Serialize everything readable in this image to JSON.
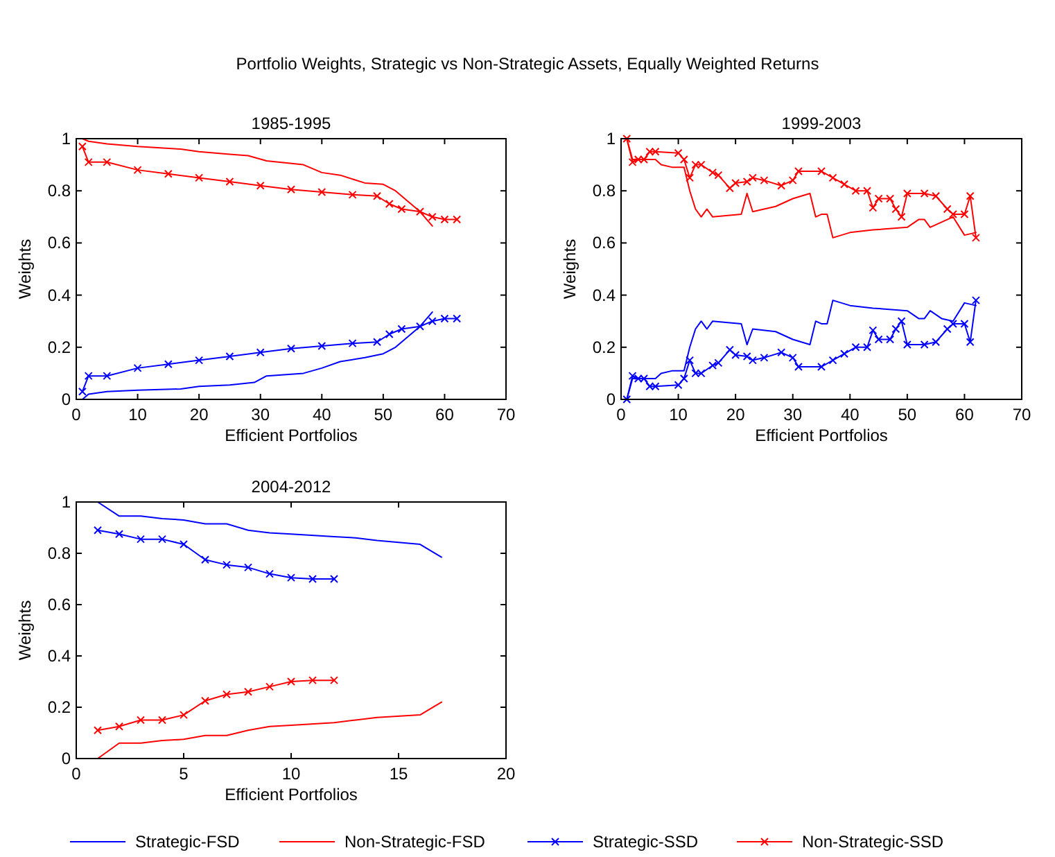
{
  "chart_data": [
    {
      "type": "line",
      "title": "1985-1995",
      "xlabel": "Efficient Portfolios",
      "ylabel": "Weights",
      "annotations": [
        "Portfolio Weights, Strategic vs Non-Strategic Assets, Equally Weighted Returns"
      ],
      "legend": "bottom",
      "xlim": [
        0,
        70
      ],
      "xticks": [
        0,
        10,
        20,
        30,
        40,
        50,
        60,
        70
      ],
      "ylim": [
        0,
        1
      ],
      "yticks": [
        0,
        0.2,
        0.4,
        0.6,
        0.8,
        1
      ],
      "grid": false,
      "series": [
        {
          "name": "Strategic-FSD",
          "color": "#0000ff",
          "marker": "none",
          "x": [
            1,
            2,
            5,
            10,
            17,
            20,
            25,
            29,
            31,
            37,
            40,
            43,
            47,
            50,
            52,
            54,
            56,
            58
          ],
          "values": [
            0,
            0.02,
            0.03,
            0.035,
            0.04,
            0.05,
            0.055,
            0.065,
            0.09,
            0.1,
            0.12,
            0.145,
            0.16,
            0.175,
            0.2,
            0.24,
            0.28,
            0.335
          ]
        },
        {
          "name": "Non-Strategic-FSD",
          "color": "#ff0000",
          "marker": "none",
          "x": [
            1,
            2,
            5,
            10,
            17,
            20,
            25,
            28,
            31,
            37,
            40,
            43,
            47,
            50,
            52,
            54,
            56,
            58
          ],
          "values": [
            1,
            0.99,
            0.98,
            0.97,
            0.96,
            0.95,
            0.94,
            0.935,
            0.915,
            0.9,
            0.87,
            0.86,
            0.83,
            0.825,
            0.8,
            0.76,
            0.72,
            0.665
          ]
        },
        {
          "name": "Strategic-SSD",
          "color": "#0000ff",
          "marker": "cross",
          "x": [
            1,
            2,
            5,
            10,
            15,
            20,
            25,
            30,
            35,
            40,
            45,
            49,
            51,
            53,
            56,
            58,
            60,
            62
          ],
          "values": [
            0.03,
            0.09,
            0.09,
            0.12,
            0.135,
            0.15,
            0.165,
            0.18,
            0.195,
            0.205,
            0.215,
            0.22,
            0.25,
            0.27,
            0.28,
            0.3,
            0.31,
            0.31
          ]
        },
        {
          "name": "Non-Strategic-SSD",
          "color": "#ff0000",
          "marker": "cross",
          "x": [
            1,
            2,
            5,
            10,
            15,
            20,
            25,
            30,
            35,
            40,
            45,
            49,
            51,
            53,
            56,
            58,
            60,
            62
          ],
          "values": [
            0.97,
            0.91,
            0.91,
            0.88,
            0.865,
            0.85,
            0.835,
            0.82,
            0.805,
            0.795,
            0.785,
            0.78,
            0.75,
            0.73,
            0.72,
            0.7,
            0.69,
            0.69
          ]
        }
      ]
    },
    {
      "type": "line",
      "title": "1999-2003",
      "xlabel": "Efficient Portfolios",
      "ylabel": "Weights",
      "xlim": [
        0,
        70
      ],
      "xticks": [
        0,
        10,
        20,
        30,
        40,
        50,
        60,
        70
      ],
      "ylim": [
        0,
        1
      ],
      "yticks": [
        0,
        0.2,
        0.4,
        0.6,
        0.8,
        1
      ],
      "grid": false,
      "series": [
        {
          "color": "#0000ff",
          "marker": "none",
          "x": [
            1,
            2,
            6,
            7,
            9,
            11,
            12,
            13,
            14,
            15,
            16,
            21,
            22,
            23,
            27,
            30,
            33,
            34,
            35,
            36,
            37,
            40,
            44,
            50,
            52,
            53,
            54,
            56,
            58,
            60,
            62
          ],
          "values": [
            0,
            0.08,
            0.08,
            0.1,
            0.11,
            0.11,
            0.2,
            0.27,
            0.3,
            0.27,
            0.3,
            0.29,
            0.21,
            0.27,
            0.26,
            0.23,
            0.21,
            0.3,
            0.29,
            0.29,
            0.38,
            0.36,
            0.35,
            0.34,
            0.31,
            0.31,
            0.34,
            0.31,
            0.3,
            0.37,
            0.36
          ]
        },
        {
          "color": "#ff0000",
          "marker": "none",
          "x": [
            1,
            2,
            6,
            7,
            9,
            11,
            12,
            13,
            14,
            15,
            16,
            21,
            22,
            23,
            27,
            30,
            33,
            34,
            35,
            36,
            37,
            40,
            44,
            50,
            52,
            53,
            54,
            56,
            58,
            60,
            62
          ],
          "values": [
            1,
            0.92,
            0.92,
            0.9,
            0.89,
            0.89,
            0.8,
            0.73,
            0.7,
            0.73,
            0.7,
            0.71,
            0.79,
            0.72,
            0.74,
            0.77,
            0.79,
            0.7,
            0.71,
            0.71,
            0.62,
            0.64,
            0.65,
            0.66,
            0.69,
            0.69,
            0.66,
            0.68,
            0.7,
            0.63,
            0.64
          ]
        },
        {
          "color": "#0000ff",
          "marker": "cross",
          "x": [
            1,
            2,
            3,
            4,
            5,
            6,
            10,
            11,
            12,
            13,
            14,
            16,
            17,
            19,
            20,
            22,
            23,
            25,
            28,
            30,
            31,
            35,
            37,
            39,
            41,
            43,
            44,
            45,
            47,
            48,
            49,
            50,
            53,
            55,
            57,
            58,
            60,
            61,
            62
          ],
          "values": [
            0,
            0.09,
            0.08,
            0.08,
            0.05,
            0.05,
            0.055,
            0.08,
            0.15,
            0.1,
            0.1,
            0.13,
            0.14,
            0.19,
            0.17,
            0.165,
            0.15,
            0.16,
            0.18,
            0.16,
            0.125,
            0.125,
            0.15,
            0.175,
            0.2,
            0.2,
            0.265,
            0.23,
            0.23,
            0.27,
            0.3,
            0.21,
            0.21,
            0.22,
            0.27,
            0.29,
            0.29,
            0.22,
            0.38
          ]
        },
        {
          "color": "#ff0000",
          "marker": "cross",
          "x": [
            1,
            2,
            3,
            4,
            5,
            6,
            10,
            11,
            12,
            13,
            14,
            16,
            17,
            19,
            20,
            22,
            23,
            25,
            28,
            30,
            31,
            35,
            37,
            39,
            41,
            43,
            44,
            45,
            47,
            48,
            49,
            50,
            53,
            55,
            57,
            58,
            60,
            61,
            62
          ],
          "values": [
            1,
            0.91,
            0.92,
            0.92,
            0.95,
            0.95,
            0.945,
            0.92,
            0.85,
            0.9,
            0.9,
            0.87,
            0.86,
            0.81,
            0.83,
            0.835,
            0.85,
            0.84,
            0.82,
            0.84,
            0.875,
            0.875,
            0.85,
            0.825,
            0.8,
            0.8,
            0.735,
            0.77,
            0.77,
            0.73,
            0.7,
            0.79,
            0.79,
            0.78,
            0.73,
            0.71,
            0.71,
            0.78,
            0.62
          ]
        }
      ]
    },
    {
      "type": "line",
      "title": "2004-2012",
      "xlabel": "Efficient Portfolios",
      "ylabel": "Weights",
      "xlim": [
        0,
        20
      ],
      "xticks": [
        0,
        5,
        10,
        15,
        20
      ],
      "ylim": [
        0,
        1
      ],
      "yticks": [
        0,
        0.2,
        0.4,
        0.6,
        0.8,
        1
      ],
      "grid": false,
      "series": [
        {
          "color": "#0000ff",
          "marker": "none",
          "x": [
            1,
            2,
            3,
            4,
            5,
            6,
            7,
            8,
            9,
            10,
            12,
            13,
            14,
            16,
            17
          ],
          "values": [
            1,
            0.945,
            0.945,
            0.935,
            0.93,
            0.915,
            0.915,
            0.89,
            0.88,
            0.875,
            0.865,
            0.86,
            0.85,
            0.835,
            0.785
          ]
        },
        {
          "color": "#ff0000",
          "marker": "none",
          "x": [
            1,
            2,
            3,
            4,
            5,
            6,
            7,
            8,
            9,
            10,
            12,
            13,
            14,
            16,
            17
          ],
          "values": [
            0,
            0.06,
            0.06,
            0.07,
            0.075,
            0.09,
            0.09,
            0.11,
            0.125,
            0.13,
            0.14,
            0.15,
            0.16,
            0.17,
            0.22
          ]
        },
        {
          "color": "#0000ff",
          "marker": "cross",
          "x": [
            1,
            2,
            3,
            4,
            5,
            6,
            7,
            8,
            9,
            10,
            11,
            12
          ],
          "values": [
            0.89,
            0.875,
            0.855,
            0.855,
            0.835,
            0.775,
            0.755,
            0.745,
            0.72,
            0.705,
            0.7,
            0.7
          ]
        },
        {
          "color": "#ff0000",
          "marker": "cross",
          "x": [
            1,
            2,
            3,
            4,
            5,
            6,
            7,
            8,
            9,
            10,
            11,
            12
          ],
          "values": [
            0.11,
            0.125,
            0.15,
            0.15,
            0.17,
            0.225,
            0.25,
            0.26,
            0.28,
            0.3,
            0.305,
            0.305
          ]
        }
      ]
    }
  ]
}
